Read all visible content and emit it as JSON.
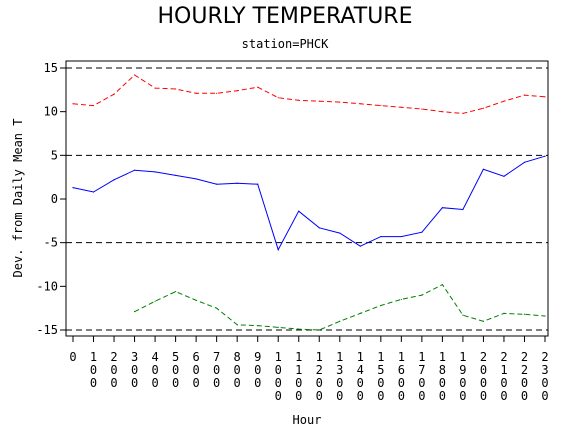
{
  "chart_data": {
    "type": "line",
    "title": "HOURLY TEMPERATURE",
    "subtitle": "station=PHCK",
    "xlabel": "Hour",
    "ylabel": "Dev. from Daily Mean T",
    "xlim": [
      0,
      2300
    ],
    "ylim": [
      -15,
      15
    ],
    "x_ticks": [
      "0",
      "100",
      "200",
      "300",
      "400",
      "500",
      "600",
      "700",
      "800",
      "900",
      "1000",
      "1100",
      "1200",
      "1300",
      "1400",
      "1500",
      "1600",
      "1700",
      "1800",
      "1900",
      "2000",
      "2100",
      "2200",
      "2300"
    ],
    "y_ticks": [
      "15",
      "10",
      "5",
      "0",
      "-5",
      "-10",
      "-15"
    ],
    "y_tick_values": [
      15,
      10,
      5,
      0,
      -5,
      -10,
      -15
    ],
    "reference_lines": [
      15,
      5,
      -5,
      -15
    ],
    "grid": false,
    "series": [
      {
        "color": "#ff0000",
        "style": "dashed",
        "x": [
          0,
          100,
          200,
          300,
          400,
          500,
          600,
          700,
          800,
          900,
          1000,
          1100,
          1200,
          1300,
          1400,
          1500,
          1600,
          1700,
          1800,
          1900,
          2000,
          2100,
          2200,
          2300
        ],
        "values": [
          10.9,
          10.7,
          12.0,
          14.2,
          12.7,
          12.6,
          12.1,
          12.1,
          12.4,
          12.8,
          11.6,
          11.3,
          11.2,
          11.1,
          10.9,
          10.7,
          10.5,
          10.3,
          10.0,
          9.8,
          10.4,
          11.2,
          11.9,
          11.7
        ]
      },
      {
        "color": "#0000ff",
        "style": "solid",
        "x": [
          0,
          100,
          200,
          300,
          400,
          500,
          600,
          700,
          800,
          900,
          1000,
          1100,
          1200,
          1300,
          1400,
          1500,
          1600,
          1700,
          1800,
          1900,
          2000,
          2100,
          2200,
          2300
        ],
        "values": [
          1.3,
          0.8,
          2.2,
          3.3,
          3.1,
          2.7,
          2.3,
          1.7,
          1.8,
          1.7,
          -5.8,
          -1.4,
          -3.3,
          -3.9,
          -5.4,
          -4.3,
          -4.3,
          -3.8,
          -1.0,
          -1.2,
          3.4,
          2.6,
          4.2,
          4.9
        ]
      },
      {
        "color": "#008000",
        "style": "dashed",
        "x": [
          300,
          400,
          500,
          600,
          700,
          800,
          900,
          1000,
          1100,
          1200,
          1300,
          1400,
          1500,
          1600,
          1700,
          1800,
          1900,
          2000,
          2100,
          2200,
          2300
        ],
        "values": [
          -12.9,
          -11.7,
          -10.6,
          -11.6,
          -12.5,
          -14.4,
          -14.5,
          -14.7,
          -14.9,
          -15.0,
          -14.0,
          -13.1,
          -12.2,
          -11.5,
          -11.0,
          -9.8,
          -13.3,
          -14.0,
          -13.1,
          -13.2,
          -13.4
        ]
      }
    ]
  }
}
